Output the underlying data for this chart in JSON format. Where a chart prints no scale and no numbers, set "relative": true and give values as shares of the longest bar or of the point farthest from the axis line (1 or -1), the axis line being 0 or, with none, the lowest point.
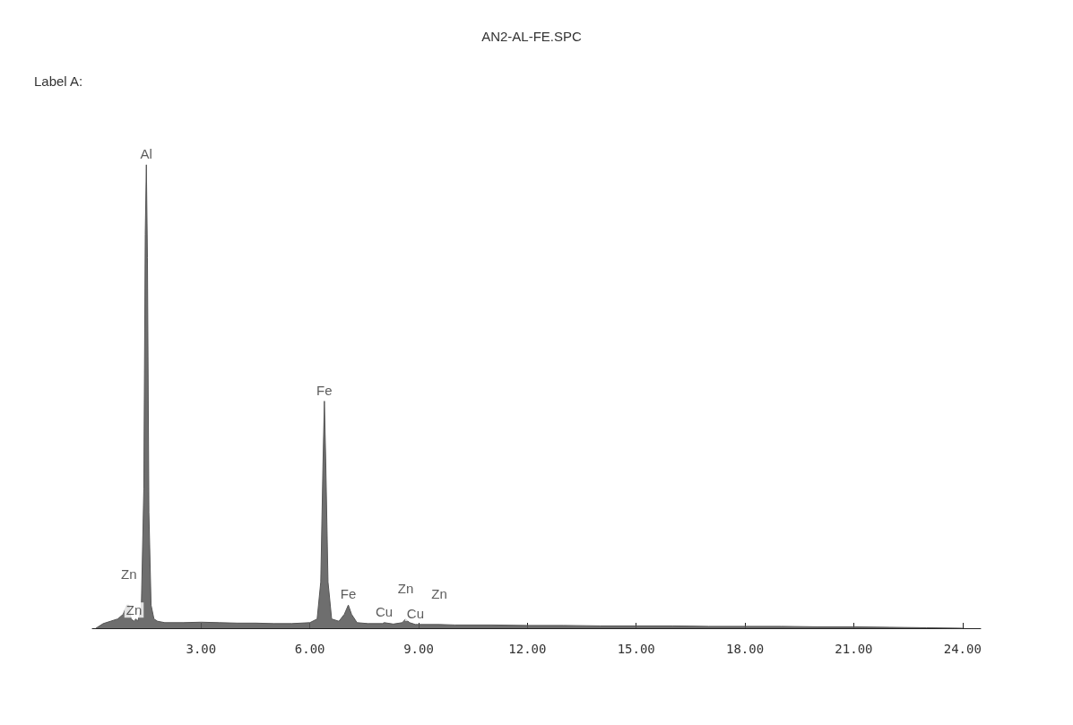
{
  "chart_data": {
    "type": "area",
    "title": "AN2-AL-FE.SPC",
    "relative": true,
    "grid": false,
    "marker": "none",
    "xlim": [
      0,
      24.5
    ],
    "xticks": [
      {
        "value": 3,
        "label": "3.00"
      },
      {
        "value": 6,
        "label": "6.00"
      },
      {
        "value": 9,
        "label": "9.00"
      },
      {
        "value": 12,
        "label": "12.00"
      },
      {
        "value": 15,
        "label": "15.00"
      },
      {
        "value": 18,
        "label": "18.00"
      },
      {
        "value": 21,
        "label": "21.00"
      },
      {
        "value": 24,
        "label": "24.00"
      }
    ],
    "annotations": [
      "Label A:",
      {
        "text": "Al",
        "x": 1.49,
        "y": 1
      },
      {
        "text": "Fe",
        "x": 6.4,
        "y": 0.49
      },
      {
        "text": "Fe",
        "x": 7.06,
        "y": 0.05
      },
      {
        "text": "Zn",
        "x": 1.01,
        "y": 0.05
      },
      {
        "text": "Zn",
        "x": 1.15,
        "y": 0.015
      },
      {
        "text": "Cu",
        "x": 8.05,
        "y": 0.012
      },
      {
        "text": "Zn",
        "x": 8.64,
        "y": 0.02
      },
      {
        "text": "Cu",
        "x": 8.91,
        "y": 0.008
      },
      {
        "text": "Zn",
        "x": 9.57,
        "y": 0.008
      }
    ],
    "series": [
      {
        "color": "#555555",
        "x": [
          0.1,
          0.3,
          0.5,
          0.7,
          0.85,
          0.95,
          1.01,
          1.07,
          1.15,
          1.2,
          1.25,
          1.35,
          1.42,
          1.46,
          1.49,
          1.52,
          1.56,
          1.62,
          1.7,
          1.8,
          2.0,
          2.5,
          3.0,
          3.5,
          4.0,
          4.5,
          5.0,
          5.5,
          6.0,
          6.2,
          6.3,
          6.36,
          6.4,
          6.44,
          6.5,
          6.6,
          6.8,
          6.95,
          7.06,
          7.15,
          7.3,
          7.6,
          8.0,
          8.05,
          8.3,
          8.55,
          8.64,
          8.75,
          8.91,
          9.0,
          9.57,
          10,
          11,
          12,
          13,
          14,
          15,
          16,
          17,
          18,
          19,
          20,
          21,
          22,
          23,
          24
        ],
        "values": [
          0,
          0.01,
          0.015,
          0.02,
          0.03,
          0.05,
          0.05,
          0.02,
          0.015,
          0.02,
          0.015,
          0.04,
          0.3,
          0.85,
          1,
          0.8,
          0.25,
          0.05,
          0.02,
          0.015,
          0.012,
          0.012,
          0.013,
          0.012,
          0.011,
          0.011,
          0.01,
          0.01,
          0.012,
          0.02,
          0.1,
          0.35,
          0.49,
          0.35,
          0.1,
          0.02,
          0.015,
          0.03,
          0.05,
          0.03,
          0.012,
          0.01,
          0.01,
          0.012,
          0.009,
          0.012,
          0.02,
          0.012,
          0.008,
          0.008,
          0.008,
          0.007,
          0.007,
          0.006,
          0.006,
          0.005,
          0.005,
          0.005,
          0.004,
          0.004,
          0.004,
          0.003,
          0.003,
          0.002,
          0.001,
          0
        ]
      }
    ]
  }
}
